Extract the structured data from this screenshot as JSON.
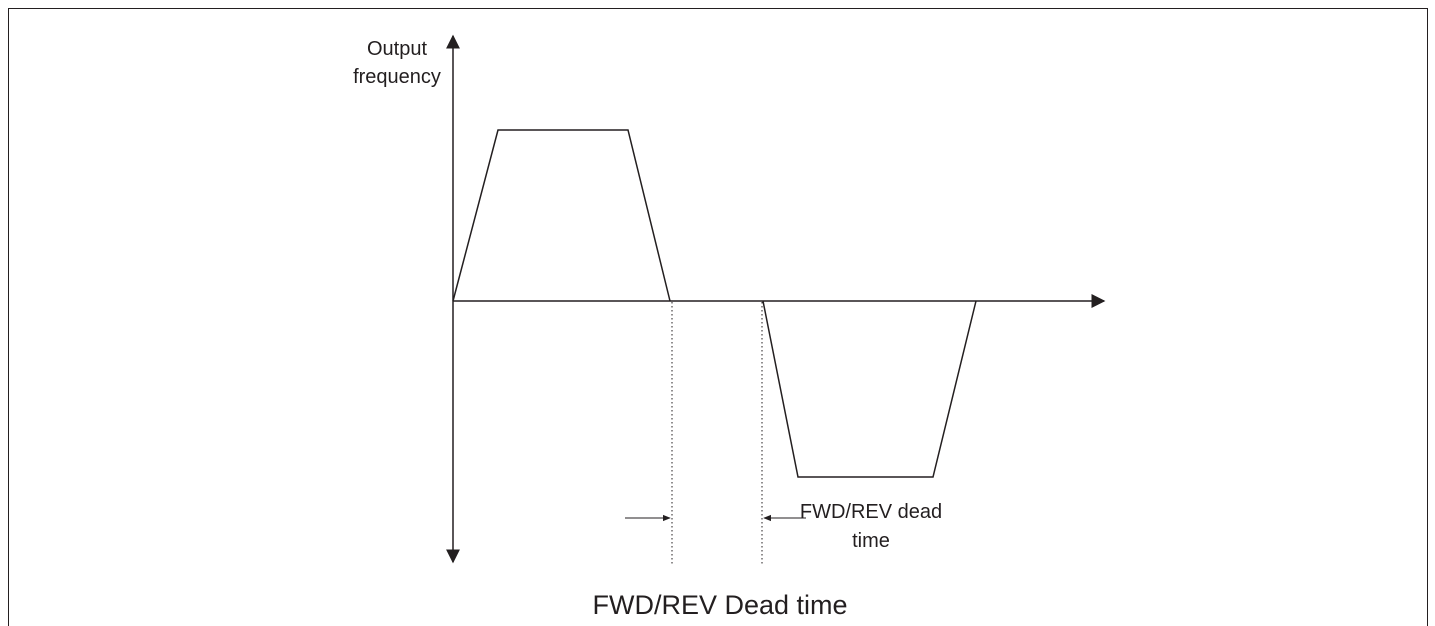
{
  "y_axis_label": [
    "Output",
    "frequency"
  ],
  "annotation": [
    "FWD/REV dead",
    "time"
  ],
  "caption": "FWD/REV Dead time"
}
